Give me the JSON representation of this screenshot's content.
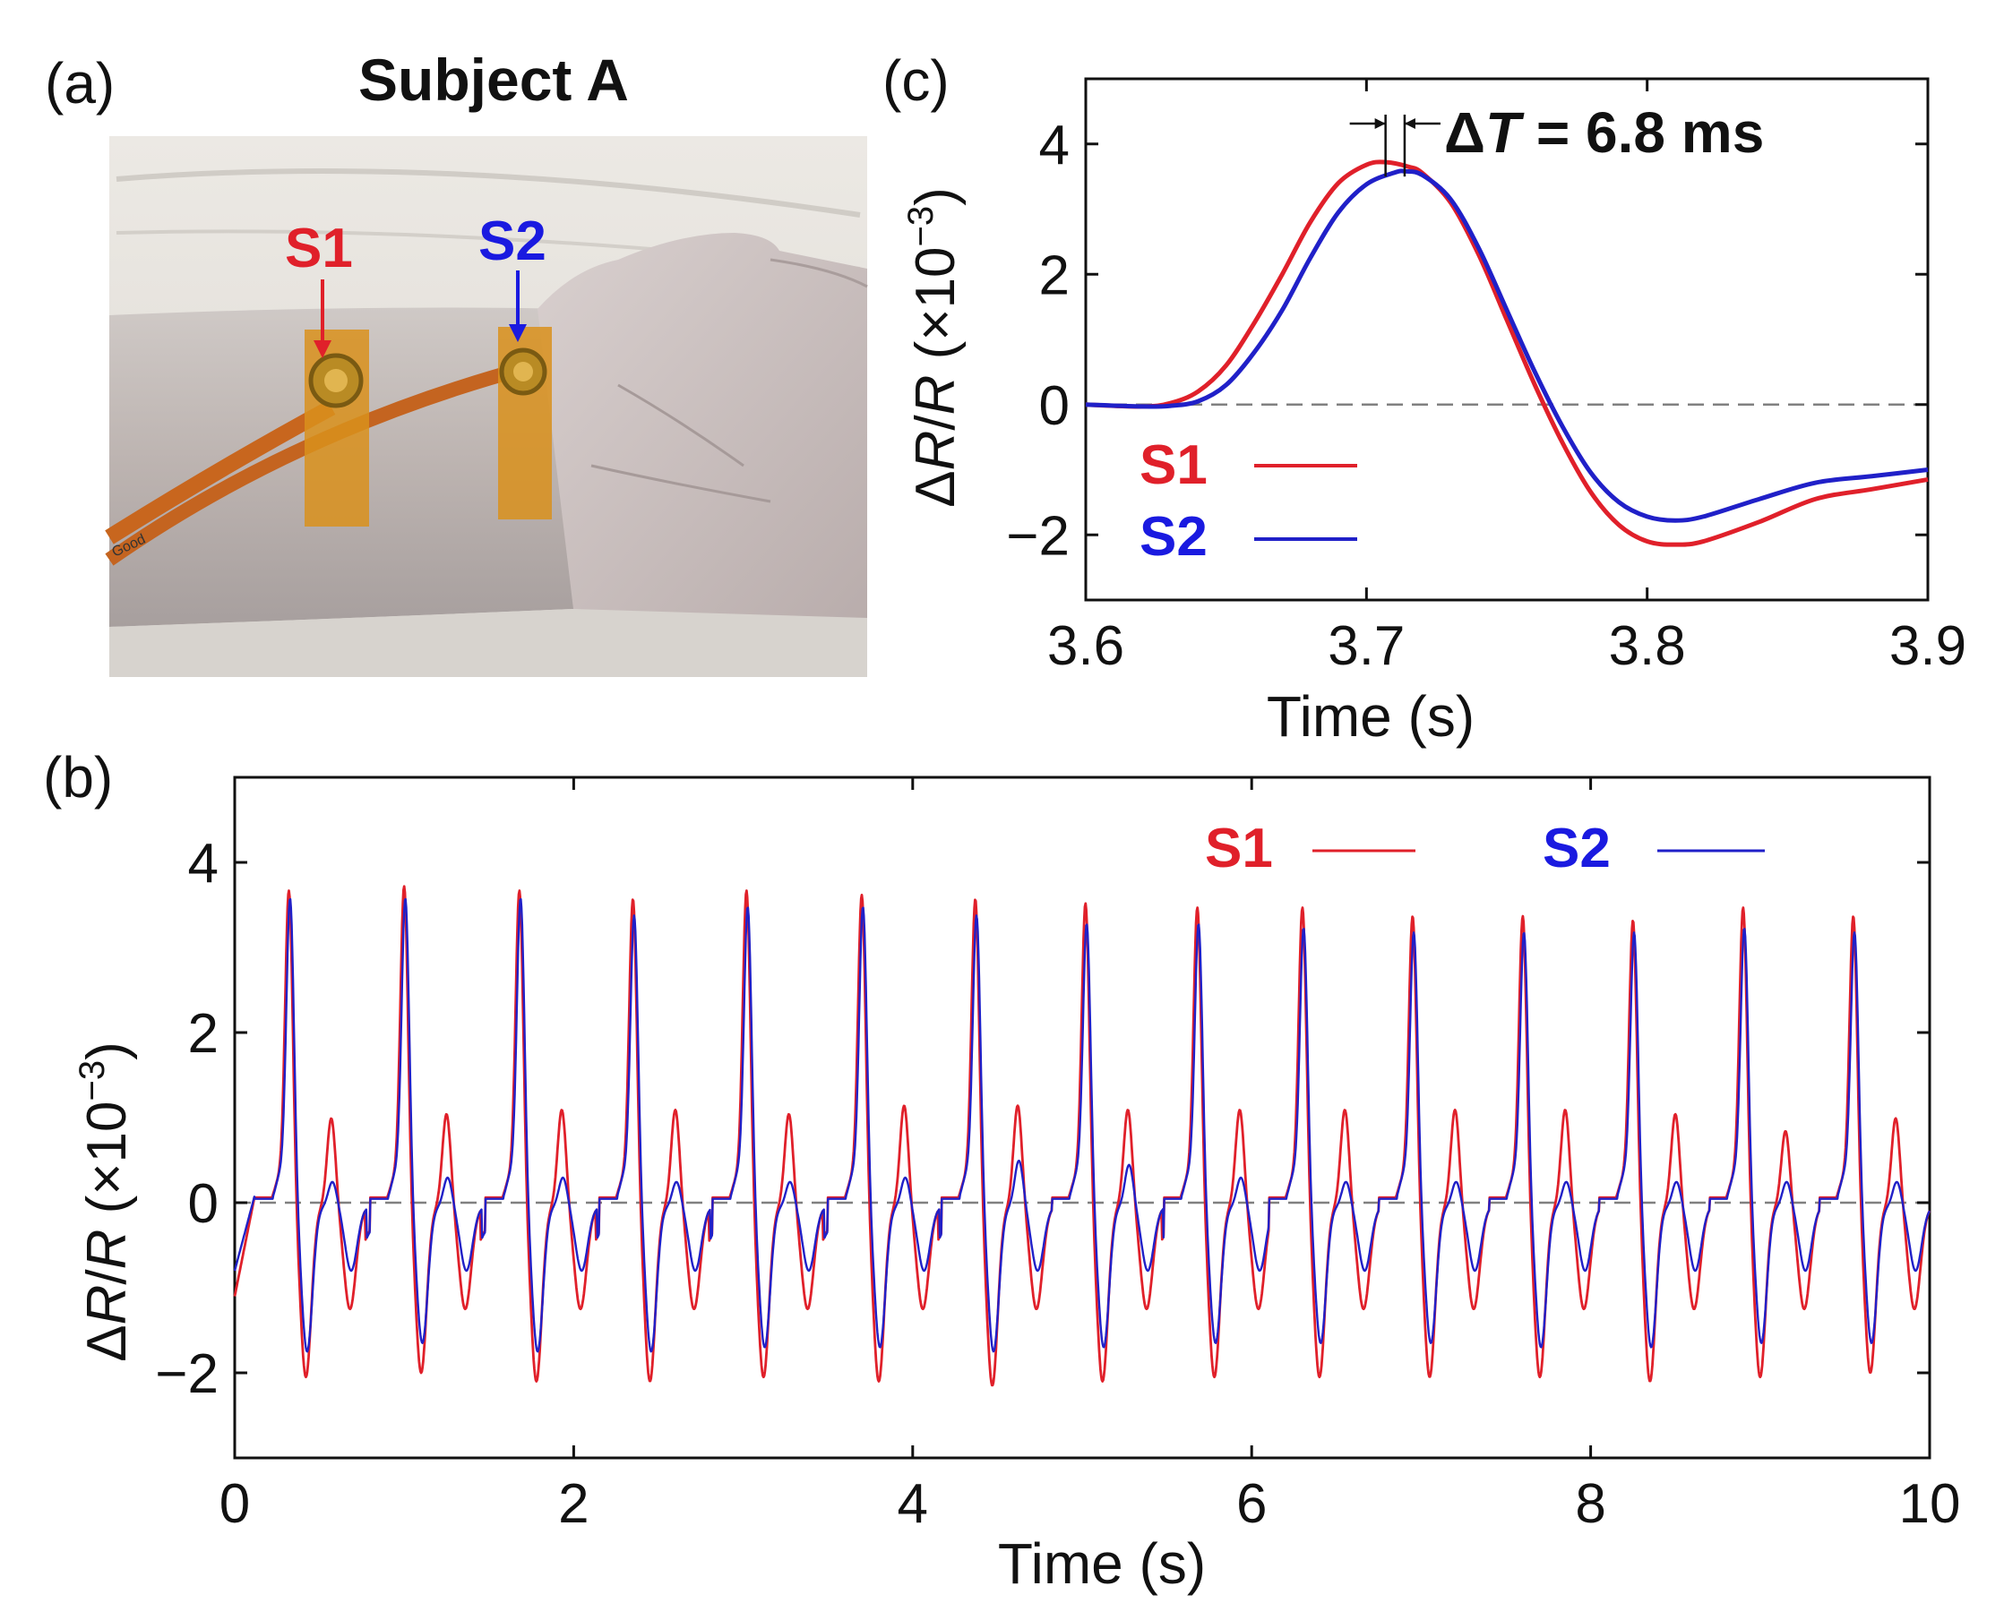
{
  "panel_a": {
    "label": "(a)",
    "title": "Subject A",
    "sensor1": "S1",
    "sensor2": "S2",
    "tape_text": "Good",
    "s1_color": "#e0202a",
    "s2_color": "#1a1ae0"
  },
  "colors": {
    "s1": "#e0202a",
    "s2": "#2020c8",
    "zero_line": "#808080"
  },
  "chart_data": [
    {
      "id": "c",
      "panel_label": "(c)",
      "type": "line",
      "xlabel": "Time (s)",
      "ylabel_delta": "Δ",
      "ylabel_R": "R",
      "ylabel_slash": "/",
      "ylabel_R2": "R",
      "ylabel_unit": " (×10",
      "ylabel_exp": "−3",
      "ylabel_close": ")",
      "xlim": [
        3.6,
        3.9
      ],
      "ylim": [
        -3,
        5
      ],
      "xticks": [
        3.6,
        3.7,
        3.8,
        3.9
      ],
      "xtick_labels": [
        "3.6",
        "3.7",
        "3.8",
        "3.9"
      ],
      "yticks": [
        -2,
        0,
        2,
        4
      ],
      "ytick_labels": [
        "−2",
        "0",
        "2",
        "4"
      ],
      "annotation_delta": "Δ",
      "annotation_T": "T",
      "annotation_value": " = 6.8 ms",
      "legend": [
        "S1",
        "S2"
      ],
      "series": [
        {
          "name": "S1",
          "x": [
            3.6,
            3.62,
            3.63,
            3.64,
            3.65,
            3.66,
            3.67,
            3.68,
            3.69,
            3.7,
            3.707,
            3.715,
            3.72,
            3.73,
            3.74,
            3.75,
            3.76,
            3.77,
            3.78,
            3.79,
            3.8,
            3.81,
            3.82,
            3.84,
            3.86,
            3.88,
            3.9
          ],
          "y": [
            0,
            -0.03,
            0.02,
            0.2,
            0.6,
            1.25,
            2.0,
            2.8,
            3.4,
            3.68,
            3.72,
            3.65,
            3.55,
            3.1,
            2.3,
            1.3,
            0.3,
            -0.6,
            -1.35,
            -1.85,
            -2.1,
            -2.15,
            -2.1,
            -1.8,
            -1.45,
            -1.3,
            -1.15
          ]
        },
        {
          "name": "S2",
          "x": [
            3.6,
            3.62,
            3.63,
            3.64,
            3.65,
            3.66,
            3.67,
            3.68,
            3.69,
            3.7,
            3.71,
            3.714,
            3.72,
            3.73,
            3.74,
            3.75,
            3.76,
            3.77,
            3.78,
            3.79,
            3.8,
            3.81,
            3.82,
            3.84,
            3.86,
            3.88,
            3.9
          ],
          "y": [
            0,
            -0.03,
            -0.02,
            0.05,
            0.3,
            0.8,
            1.45,
            2.25,
            2.95,
            3.38,
            3.56,
            3.58,
            3.52,
            3.15,
            2.4,
            1.45,
            0.5,
            -0.35,
            -1.05,
            -1.5,
            -1.72,
            -1.78,
            -1.72,
            -1.45,
            -1.2,
            -1.1,
            -1.0
          ]
        }
      ]
    },
    {
      "id": "b",
      "panel_label": "(b)",
      "type": "line",
      "xlabel": "Time (s)",
      "ylabel_delta": "Δ",
      "ylabel_R": "R",
      "ylabel_slash": "/",
      "ylabel_R2": "R",
      "ylabel_unit": " (×10",
      "ylabel_exp": "−3",
      "ylabel_close": ")",
      "xlim": [
        0,
        10
      ],
      "ylim": [
        -3,
        5
      ],
      "xticks": [
        0,
        2,
        4,
        6,
        8,
        10
      ],
      "xtick_labels": [
        "0",
        "2",
        "4",
        "6",
        "8",
        "10"
      ],
      "yticks": [
        -2,
        0,
        2,
        4
      ],
      "ytick_labels": [
        "−2",
        "0",
        "2",
        "4"
      ],
      "legend": [
        "S1",
        "S2"
      ],
      "beat_times": [
        0.0,
        0.68,
        1.35,
        2.02,
        2.68,
        3.37,
        4.05,
        4.7,
        5.36,
        6.0,
        6.66,
        7.32,
        7.97,
        8.63,
        9.3
      ],
      "peak_times": [
        0.32,
        1.0,
        1.68,
        2.35,
        3.02,
        3.7,
        4.37,
        5.02,
        5.68,
        6.3,
        6.95,
        7.6,
        8.25,
        8.9,
        9.55
      ],
      "s1_peaks": [
        3.7,
        3.75,
        3.7,
        3.6,
        3.7,
        3.65,
        3.6,
        3.55,
        3.5,
        3.5,
        3.4,
        3.4,
        3.35,
        3.5,
        3.4
      ],
      "s2_peaks": [
        3.6,
        3.6,
        3.6,
        3.4,
        3.5,
        3.5,
        3.4,
        3.3,
        3.3,
        3.25,
        3.2,
        3.2,
        3.2,
        3.25,
        3.2
      ],
      "s1_troughs": [
        -2.0,
        -1.95,
        -2.05,
        -2.05,
        -2.0,
        -2.05,
        -2.1,
        -2.05,
        -2.0,
        -2.0,
        -2.0,
        -2.0,
        -2.05,
        -2.0,
        -1.95
      ],
      "s2_troughs": [
        -1.7,
        -1.6,
        -1.7,
        -1.7,
        -1.65,
        -1.65,
        -1.7,
        -1.65,
        -1.6,
        -1.6,
        -1.6,
        -1.65,
        -1.65,
        -1.6,
        -1.6
      ],
      "s1_secondary": [
        1.05,
        1.1,
        1.15,
        1.15,
        1.1,
        1.2,
        1.2,
        1.15,
        1.15,
        1.15,
        1.15,
        1.15,
        1.1,
        0.9,
        1.05
      ],
      "s2_secondary": [
        0.3,
        0.35,
        0.35,
        0.3,
        0.3,
        0.35,
        0.55,
        0.5,
        0.35,
        0.3,
        0.3,
        0.3,
        0.3,
        0.3,
        0.3
      ]
    }
  ]
}
